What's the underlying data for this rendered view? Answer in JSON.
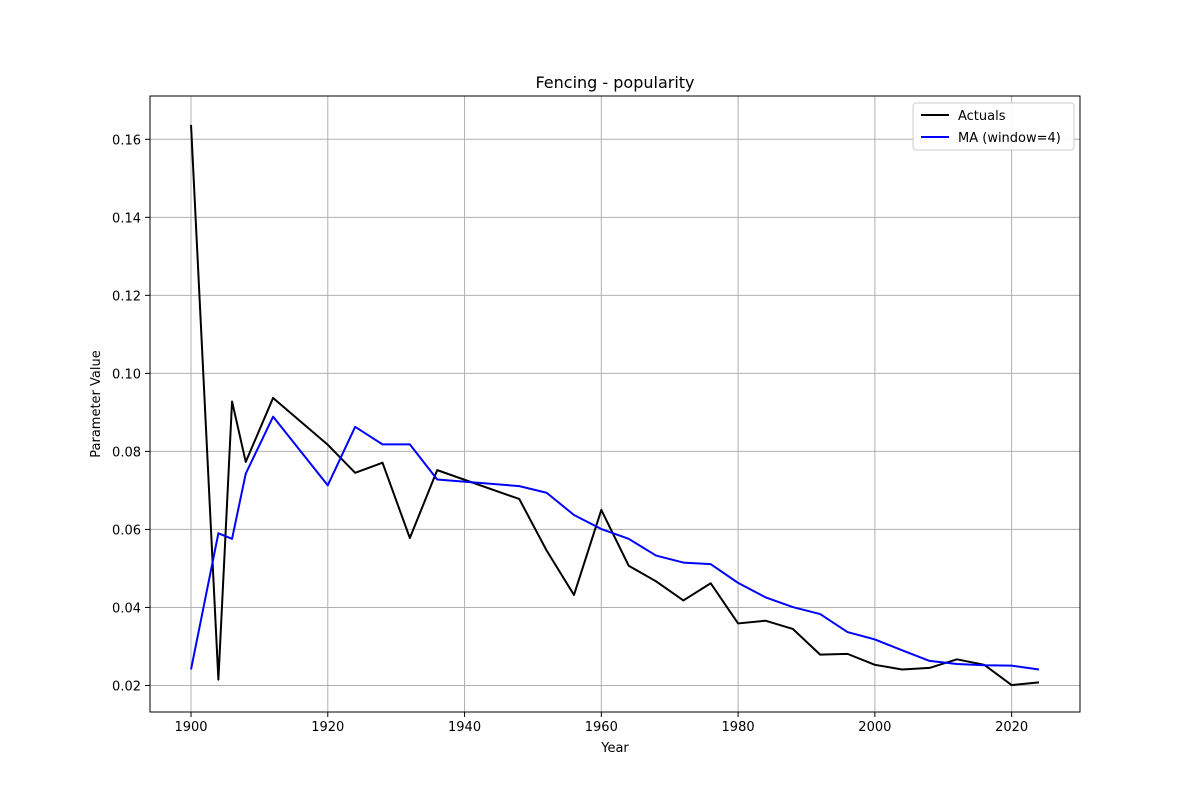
{
  "chart_data": {
    "type": "line",
    "title": "Fencing - popularity",
    "xlabel": "Year",
    "ylabel": "Parameter Value",
    "xlim": [
      1894,
      2030
    ],
    "ylim": [
      0.0132,
      0.1711
    ],
    "x_ticks": [
      1900,
      1920,
      1940,
      1960,
      1980,
      2000,
      2020
    ],
    "x_tick_labels": [
      "1900",
      "1920",
      "1940",
      "1960",
      "1980",
      "2000",
      "2020"
    ],
    "y_ticks": [
      0.02,
      0.04,
      0.06,
      0.08,
      0.1,
      0.12,
      0.14,
      0.16
    ],
    "y_tick_labels": [
      "0.02",
      "0.04",
      "0.06",
      "0.08",
      "0.10",
      "0.12",
      "0.14",
      "0.16"
    ],
    "grid": true,
    "legend_position": "top-right",
    "series": [
      {
        "name": "Actuals",
        "color": "#000000",
        "x": [
          1900,
          1904,
          1906,
          1908,
          1912,
          1920,
          1924,
          1928,
          1932,
          1936,
          1948,
          1952,
          1956,
          1960,
          1964,
          1968,
          1972,
          1976,
          1980,
          1984,
          1988,
          1992,
          1996,
          2000,
          2004,
          2008,
          2012,
          2016,
          2020,
          2024
        ],
        "y": [
          0.1637,
          0.0215,
          0.0928,
          0.0773,
          0.0937,
          0.0817,
          0.0745,
          0.0771,
          0.0578,
          0.0752,
          0.0678,
          0.0546,
          0.0432,
          0.065,
          0.0507,
          0.0467,
          0.0418,
          0.0462,
          0.0359,
          0.0366,
          0.0345,
          0.0279,
          0.0281,
          0.0253,
          0.0241,
          0.0245,
          0.0267,
          0.0253,
          0.0201,
          0.0208
        ]
      },
      {
        "name": "MA (window=4)",
        "color": "#0000ff",
        "x": [
          1900,
          1904,
          1906,
          1908,
          1912,
          1920,
          1924,
          1928,
          1932,
          1936,
          1948,
          1952,
          1956,
          1960,
          1964,
          1968,
          1972,
          1976,
          1980,
          1984,
          1988,
          1992,
          1996,
          2000,
          2004,
          2008,
          2012,
          2016,
          2020,
          2024
        ],
        "y": [
          0.0241,
          0.059,
          0.0576,
          0.0743,
          0.0889,
          0.0713,
          0.0863,
          0.0818,
          0.0818,
          0.0728,
          0.0711,
          0.0694,
          0.0637,
          0.0601,
          0.0576,
          0.0533,
          0.0515,
          0.0511,
          0.0463,
          0.0426,
          0.0401,
          0.0383,
          0.0337,
          0.0318,
          0.029,
          0.0263,
          0.0255,
          0.0252,
          0.0251,
          0.0241
        ]
      }
    ]
  }
}
